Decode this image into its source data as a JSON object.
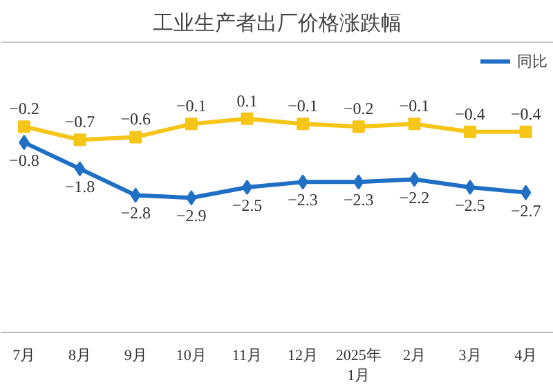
{
  "chart_data": {
    "type": "line",
    "title": "工业生产者出厂价格涨跌幅",
    "categories": [
      "7月",
      "8月",
      "9月",
      "10月",
      "11月",
      "12月",
      "2025年\n1月",
      "2月",
      "3月",
      "4月"
    ],
    "series": [
      {
        "name": "同比",
        "color": "#1f6fc5",
        "marker": "diamond",
        "values": [
          -0.8,
          -1.8,
          -2.8,
          -2.9,
          -2.5,
          -2.3,
          -2.3,
          -2.2,
          -2.5,
          -2.7
        ]
      },
      {
        "color": "#f5c518",
        "marker": "square",
        "values": [
          -0.2,
          -0.7,
          -0.6,
          -0.1,
          0.1,
          -0.1,
          -0.2,
          -0.1,
          -0.4,
          -0.4
        ]
      }
    ],
    "ylim": [
      -8,
      3
    ],
    "tick_labels": "x",
    "data_labels": true,
    "grid": false,
    "legend": "top right"
  }
}
